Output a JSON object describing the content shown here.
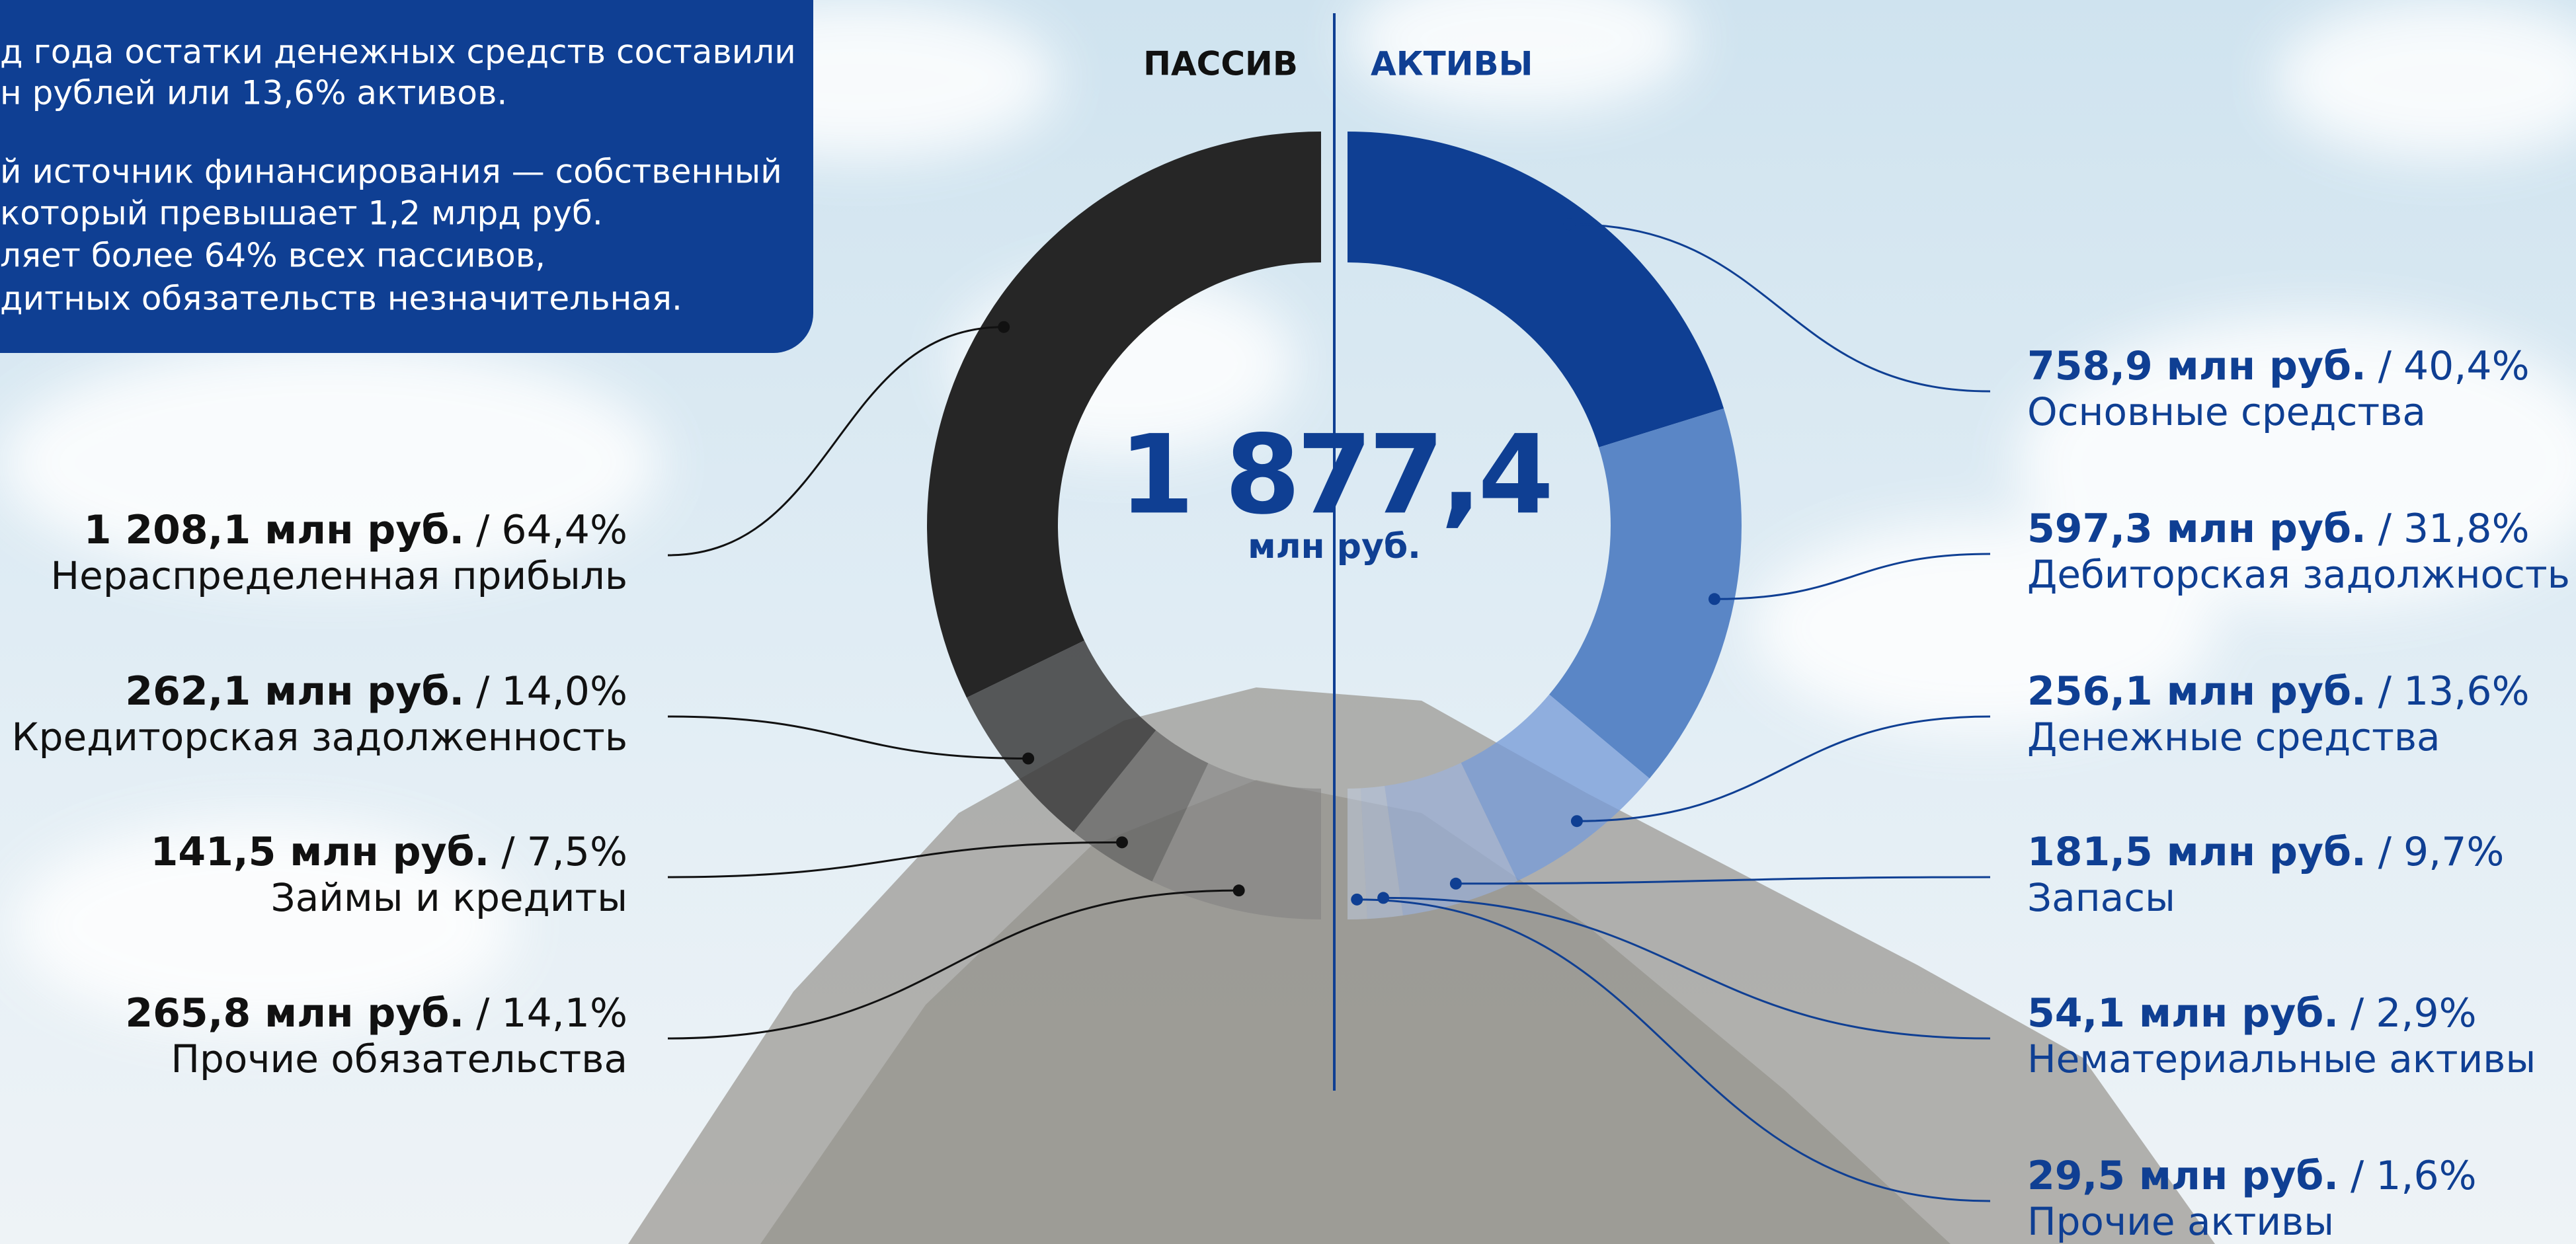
{
  "text_box": {
    "lines": [
      "д года остатки денежных средств составили",
      "н рублей или 13,6% активов.",
      "й источник финансирования — собственный",
      " который превышает 1,2 млрд руб.",
      "ляет более 64% всех пассивов,",
      "дитных обязательств незначительная."
    ]
  },
  "total": {
    "label": "1 877,4",
    "unit": "млн руб."
  },
  "label_separator": "/",
  "chart_data": [
    {
      "type": "donut",
      "side": "left",
      "title": "ПАССИВ",
      "categories": [
        "Нераспределенная прибыль",
        "Кредиторская задолженность",
        "Займы и кредиты",
        "Прочие обязательства"
      ],
      "values": [
        1208.1,
        262.1,
        141.5,
        265.8
      ],
      "value_labels": [
        "1 208,1 млн руб.",
        "262,1 млн руб.",
        "141,5 млн руб.",
        "265,8 млн руб."
      ],
      "shares": [
        64.4,
        14.0,
        7.5,
        14.1
      ],
      "share_labels": [
        "64,4%",
        "14,0%",
        "7,5%",
        "14,1%"
      ],
      "colors": [
        "#262626",
        "#3c3c3cd9",
        "#5a5a5aa6",
        "#7e7e7e80"
      ],
      "text_color": "#111111"
    },
    {
      "type": "donut",
      "side": "right",
      "title": "АКТИВЫ",
      "categories": [
        "Основные средства",
        "Дебиторская задолжность",
        "Денежные средства",
        "Запасы",
        "Нематериальные активы",
        "Прочие активы"
      ],
      "values": [
        758.9,
        597.3,
        256.1,
        181.5,
        54.1,
        29.5
      ],
      "value_labels": [
        "758,9 млн руб.",
        "597,3 млн руб.",
        "256,1 млн руб.",
        "181,5 млн руб.",
        "54,1 млн руб.",
        "29,5 млн руб."
      ],
      "shares": [
        40.4,
        31.8,
        13.6,
        9.7,
        2.9,
        1.6
      ],
      "share_labels": [
        "40,4%",
        "31,8%",
        "13,6%",
        "9,7%",
        "2,9%",
        "1,6%"
      ],
      "colors": [
        "#0f3f93",
        "#5a86c6",
        "#789bd7c8",
        "#9ab3e0a0",
        "#b6c9eb80",
        "#c8d7f070"
      ],
      "text_color": "#0f3f93"
    }
  ]
}
